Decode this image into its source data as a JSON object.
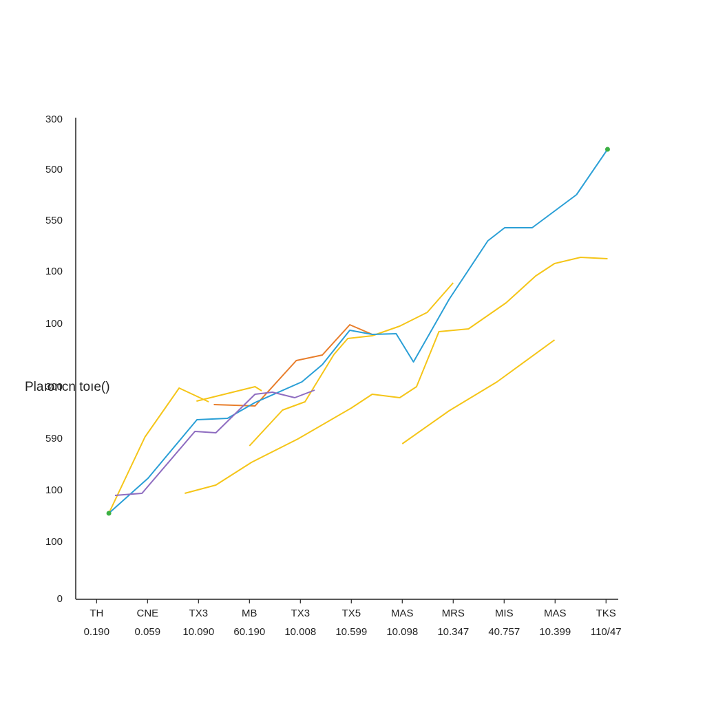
{
  "chart_data": {
    "type": "line",
    "ylabel": "Plaıoncn toıe()",
    "xlim": [
      -0.41,
      10.24
    ],
    "ylim": [
      0,
      700
    ],
    "xticks": [
      {
        "value": 0,
        "label": "TH"
      },
      {
        "value": 1,
        "label": "CNE"
      },
      {
        "value": 2,
        "label": "TX3"
      },
      {
        "value": 3,
        "label": "MB"
      },
      {
        "value": 4,
        "label": "TX3"
      },
      {
        "value": 5,
        "label": "TX5"
      },
      {
        "value": 6,
        "label": "MAS"
      },
      {
        "value": 7,
        "label": "MRS"
      },
      {
        "value": 8,
        "label": "MIS"
      },
      {
        "value": 9,
        "label": "MAS"
      },
      {
        "value": 10,
        "label": "TKS"
      }
    ],
    "xtick_sublabels": [
      "0.190",
      "0.059",
      "10.090",
      "60.190",
      "10.008",
      "10.599",
      "10.098",
      "10.347",
      "40.757",
      "10.399",
      "110/47"
    ],
    "yticks": [
      {
        "value": 697,
        "label": "300"
      },
      {
        "value": 624,
        "label": "500"
      },
      {
        "value": 550,
        "label": "550"
      },
      {
        "value": 476,
        "label": "100"
      },
      {
        "value": 400,
        "label": "100"
      },
      {
        "value": 308,
        "label": "300"
      },
      {
        "value": 233,
        "label": "590"
      },
      {
        "value": 158,
        "label": "100"
      },
      {
        "value": 83,
        "label": "100"
      },
      0
    ],
    "series": [
      {
        "color": "#f5c518",
        "x": [
          1.73,
          2.34,
          3.04,
          3.95,
          5.0,
          5.41,
          5.95,
          6.28,
          6.72,
          7.3,
          8.04,
          8.62,
          8.99,
          9.5,
          10.03
        ],
        "values": [
          154,
          166,
          199,
          233,
          278,
          298,
          293,
          309,
          389,
          393,
          431,
          470,
          488,
          497,
          495
        ]
      },
      {
        "color": "#f5c518",
        "x": [
          6.0,
          6.92,
          7.86,
          8.99
        ],
        "values": [
          226,
          274,
          316,
          377
        ]
      },
      {
        "color": "#f5c518",
        "x": [
          3.0,
          3.65,
          4.09,
          4.66,
          4.93,
          5.41,
          5.95,
          6.49,
          7.0
        ],
        "values": [
          223,
          275,
          287,
          356,
          379,
          383,
          397,
          417,
          460
        ]
      },
      {
        "color": "#f5c518",
        "x": [
          0.24,
          0.95,
          1.62,
          2.2
        ],
        "values": [
          125,
          236,
          307,
          287
        ]
      },
      {
        "color": "#f5c518",
        "x": [
          1.96,
          3.11,
          3.24
        ],
        "values": [
          288,
          309,
          303
        ]
      },
      {
        "color": "#e87d2a",
        "x": [
          2.3,
          3.11,
          3.92,
          4.43,
          4.97,
          5.41
        ],
        "values": [
          283,
          281,
          347,
          355,
          399,
          385
        ]
      },
      {
        "color": "#2a9fd6",
        "x": [
          0.24,
          1.01,
          1.97,
          2.57,
          3.11,
          4.03,
          4.43,
          4.97,
          5.41,
          5.88,
          6.22,
          6.92,
          7.68,
          8.01,
          8.55,
          9.42,
          10.03
        ],
        "values": [
          125,
          176,
          261,
          263,
          286,
          316,
          341,
          391,
          385,
          386,
          345,
          436,
          521,
          540,
          540,
          588,
          654
        ]
      },
      {
        "color": "#8e6cc0",
        "x": [
          0.36,
          0.89,
          1.93,
          2.34,
          3.11,
          3.45,
          3.89,
          4.28
        ],
        "values": [
          151,
          154,
          244,
          242,
          298,
          301,
          293,
          304
        ]
      },
      {
        "type": "scatter",
        "color": "#3cb043",
        "x": [
          0.24,
          10.03
        ],
        "values": [
          125,
          654
        ]
      }
    ]
  }
}
